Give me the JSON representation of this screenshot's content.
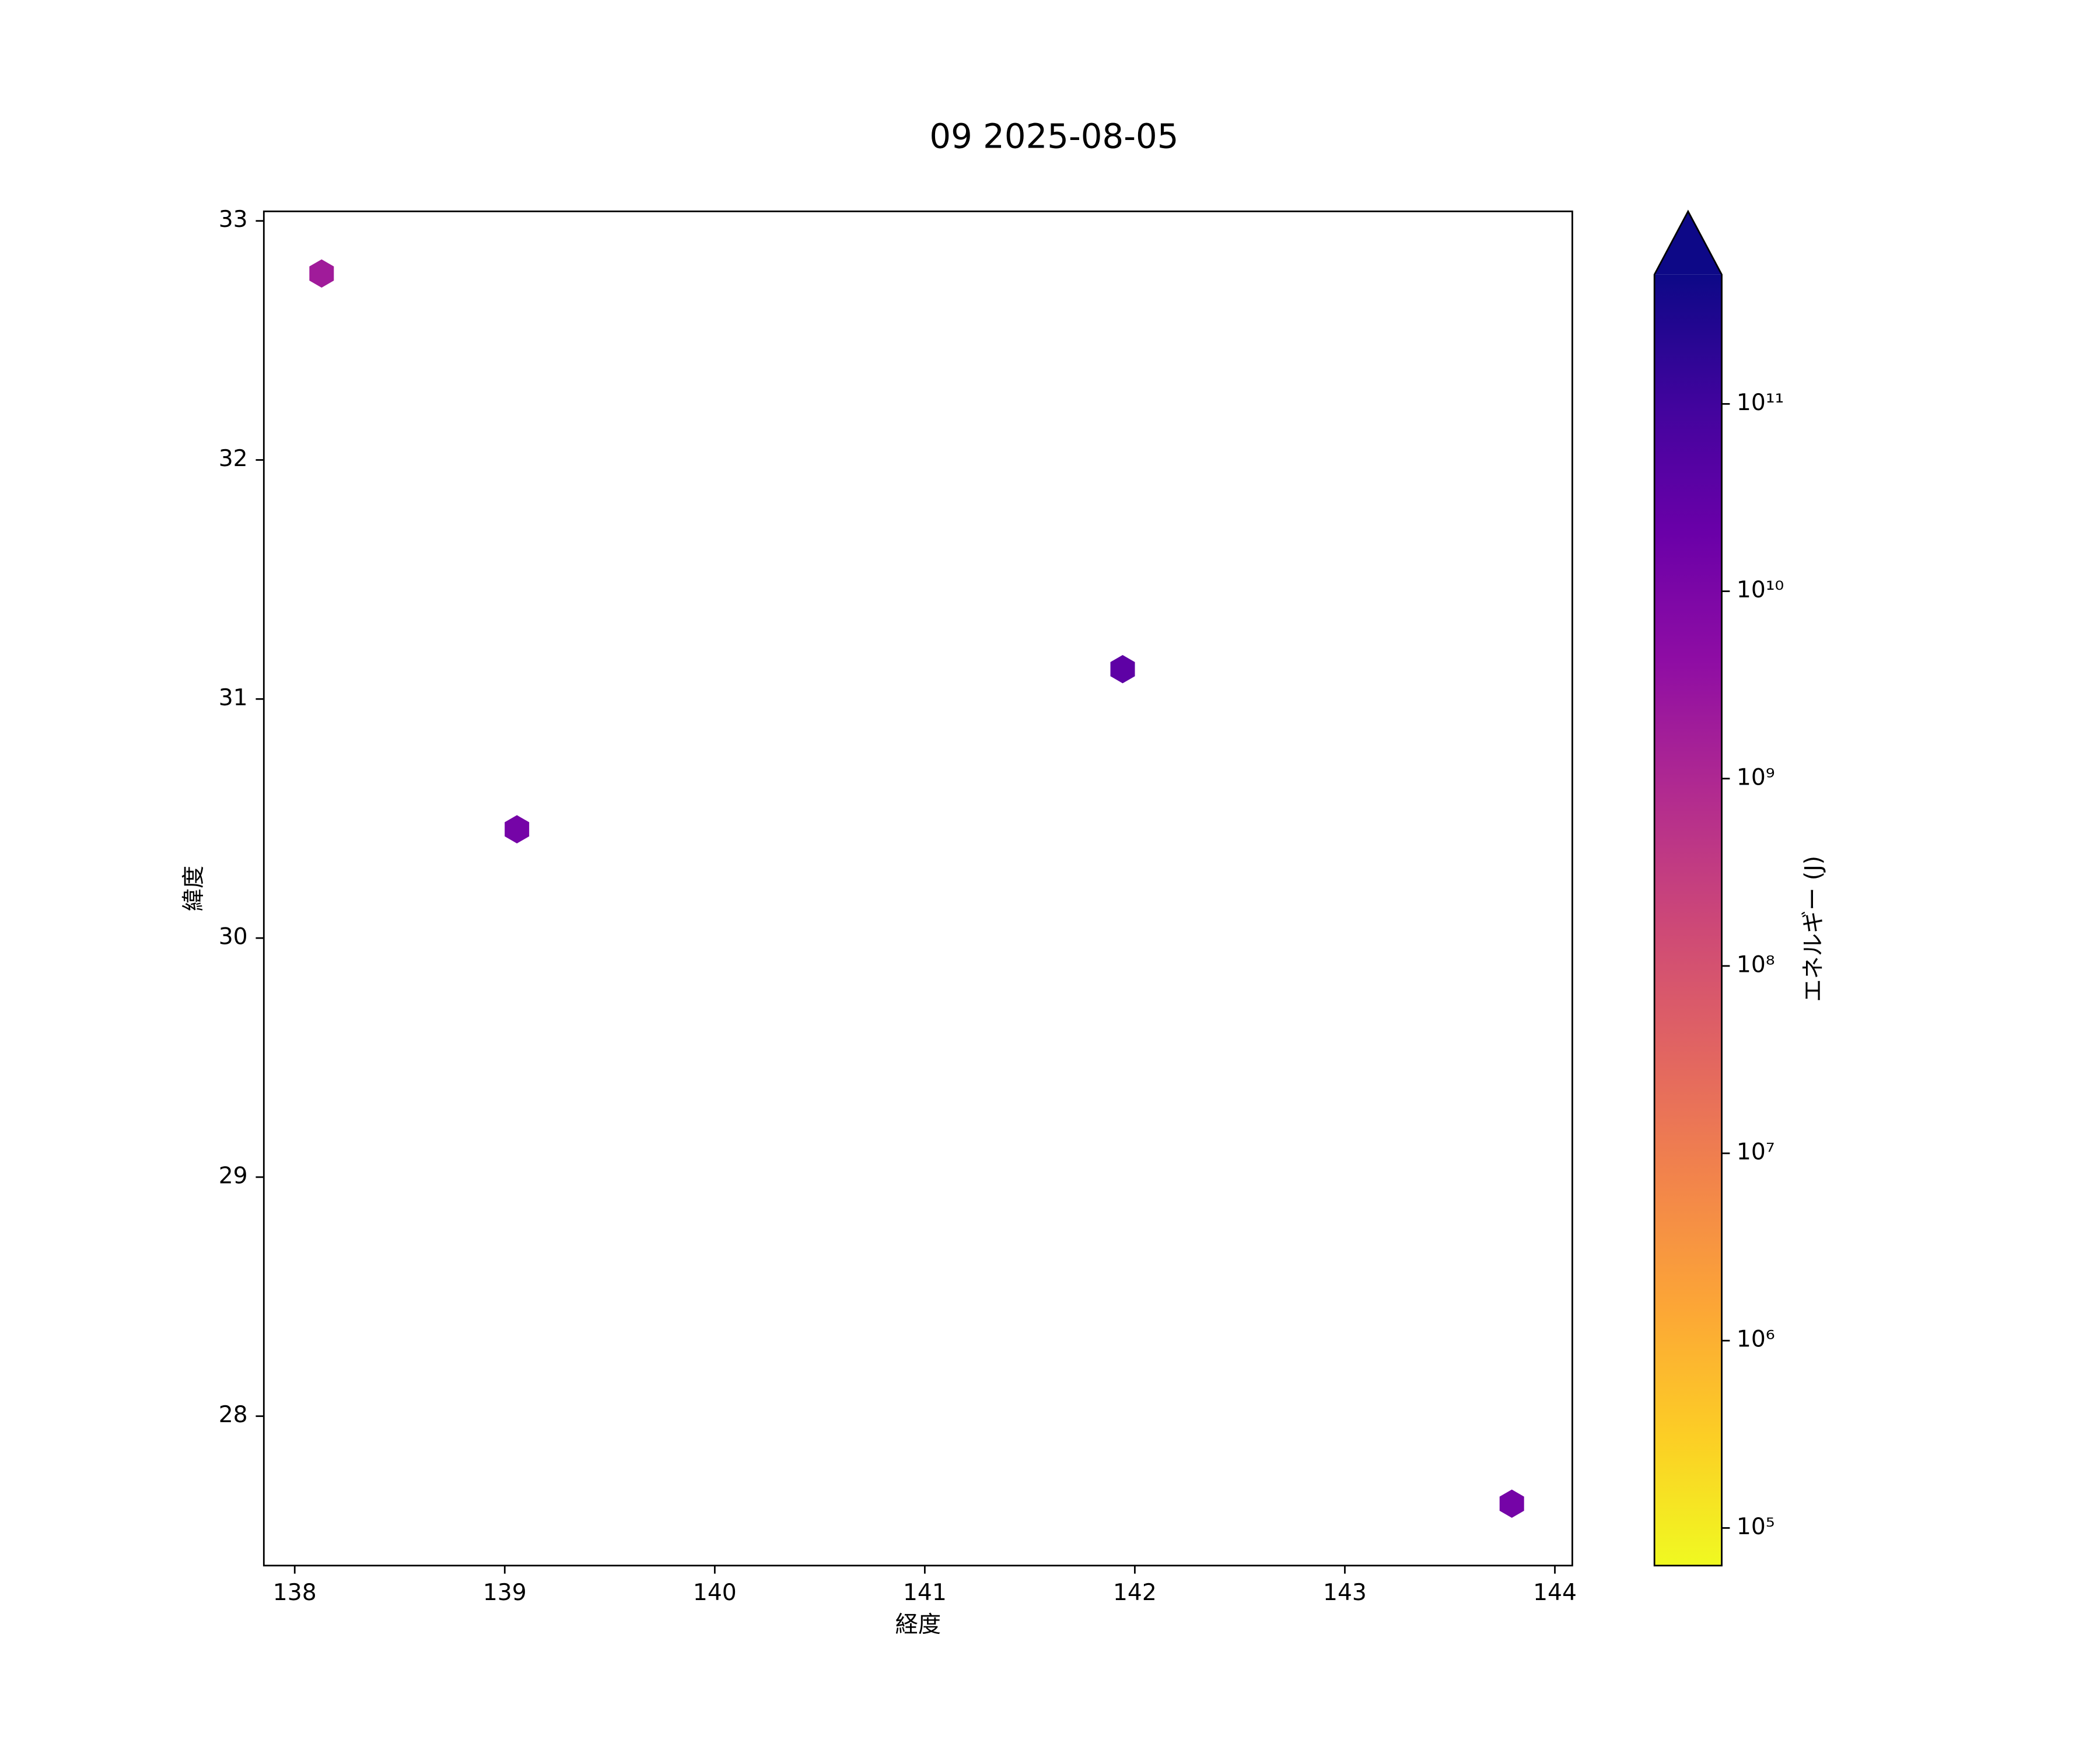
{
  "chart_data": {
    "type": "scatter",
    "marker": "hexagon",
    "title": "09 2025-08-05",
    "x_label": "経度",
    "y_label": "緯度",
    "x": [
      138.128,
      139.058,
      141.942,
      143.795
    ],
    "y": [
      32.78,
      30.455,
      31.125,
      27.634
    ],
    "values": [
      1900000000,
      13000000000,
      33000000000,
      13000000000
    ],
    "xlim": [
      137.853,
      144.083
    ],
    "xticks": [
      138,
      139,
      140,
      141,
      142,
      143,
      144
    ],
    "ylim": [
      27.375,
      33.04
    ],
    "yticks": [
      28,
      29,
      30,
      31,
      32,
      33
    ],
    "colormap": "plasma_r",
    "colorbar_extend": "max",
    "colorbar_label": "エネルギー (J)",
    "clim": [
      63000,
      490000000000
    ],
    "log_scale_colorbar": true,
    "cticks": [
      {
        "value": 100000,
        "label": "10⁵"
      },
      {
        "value": 1000000,
        "label": "10⁶"
      },
      {
        "value": 10000000,
        "label": "10⁷"
      },
      {
        "value": 100000000,
        "label": "10⁸"
      },
      {
        "value": 1000000000,
        "label": "10⁹"
      },
      {
        "value": 10000000000,
        "label": "10¹⁰"
      },
      {
        "value": 100000000000,
        "label": "10¹¹"
      }
    ]
  }
}
